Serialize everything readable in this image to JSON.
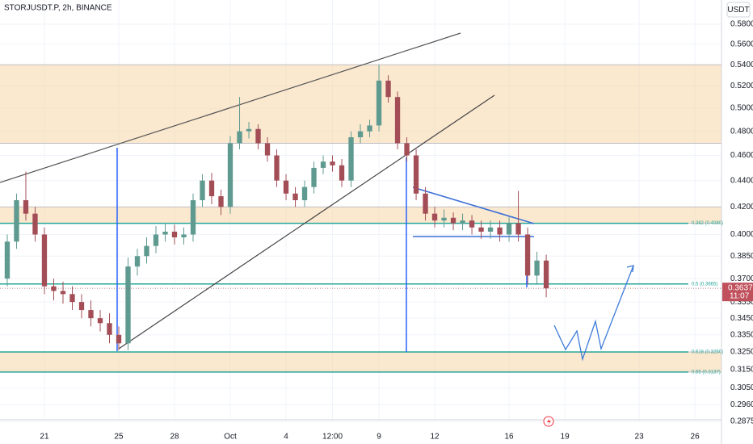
{
  "chart_data": {
    "type": "candlestick",
    "title": "STORJUSDT.P, 2h, BINANCE",
    "currency": "USDT",
    "log_scale": true,
    "grid": true,
    "up_color": "#5f9a90",
    "down_color": "#a34e57",
    "x": [
      19,
      19.5,
      20,
      20.5,
      21,
      21.5,
      22,
      22.5,
      23,
      23.5,
      24,
      24.5,
      25,
      25.5,
      26,
      26.5,
      27,
      27.5,
      28,
      28.5,
      29,
      29.5,
      30,
      30.5,
      31,
      31.5,
      32,
      32.5,
      33,
      33.5,
      34,
      34.5,
      35,
      35.5,
      36,
      36.5,
      37,
      37.5,
      38,
      38.5,
      39,
      39.5,
      40,
      40.5,
      41,
      41.5,
      42,
      42.5,
      43,
      43.5,
      44,
      44.5,
      45,
      45.5,
      46,
      46.5,
      47,
      47.5,
      48
    ],
    "open": [
      0.37,
      0.395,
      0.425,
      0.415,
      0.4,
      0.365,
      0.362,
      0.36,
      0.355,
      0.35,
      0.345,
      0.342,
      0.335,
      0.33,
      0.378,
      0.385,
      0.392,
      0.4,
      0.402,
      0.398,
      0.4,
      0.425,
      0.44,
      0.428,
      0.42,
      0.47,
      0.48,
      0.482,
      0.47,
      0.46,
      0.44,
      0.43,
      0.425,
      0.435,
      0.45,
      0.455,
      0.452,
      0.44,
      0.475,
      0.48,
      0.485,
      0.525,
      0.51,
      0.47,
      0.46,
      0.43,
      0.415,
      0.41,
      0.412,
      0.408,
      0.41,
      0.405,
      0.402,
      0.405,
      0.4,
      0.408,
      0.4,
      0.372,
      0.382
    ],
    "high": [
      0.4,
      0.43,
      0.447,
      0.42,
      0.405,
      0.37,
      0.368,
      0.365,
      0.36,
      0.356,
      0.35,
      0.348,
      0.34,
      0.384,
      0.39,
      0.398,
      0.406,
      0.408,
      0.407,
      0.405,
      0.43,
      0.445,
      0.446,
      0.433,
      0.476,
      0.51,
      0.488,
      0.486,
      0.475,
      0.465,
      0.445,
      0.435,
      0.44,
      0.455,
      0.46,
      0.46,
      0.457,
      0.48,
      0.486,
      0.49,
      0.54,
      0.53,
      0.515,
      0.475,
      0.465,
      0.435,
      0.42,
      0.418,
      0.416,
      0.415,
      0.414,
      0.41,
      0.41,
      0.41,
      0.413,
      0.432,
      0.405,
      0.388,
      0.386
    ],
    "low": [
      0.365,
      0.39,
      0.41,
      0.395,
      0.36,
      0.356,
      0.354,
      0.35,
      0.345,
      0.34,
      0.337,
      0.33,
      0.326,
      0.326,
      0.372,
      0.38,
      0.387,
      0.395,
      0.393,
      0.393,
      0.395,
      0.42,
      0.422,
      0.414,
      0.415,
      0.465,
      0.474,
      0.465,
      0.455,
      0.435,
      0.425,
      0.42,
      0.42,
      0.43,
      0.445,
      0.447,
      0.435,
      0.435,
      0.47,
      0.475,
      0.48,
      0.505,
      0.465,
      0.455,
      0.425,
      0.41,
      0.405,
      0.405,
      0.403,
      0.403,
      0.4,
      0.397,
      0.397,
      0.395,
      0.395,
      0.395,
      0.366,
      0.366,
      0.358
    ],
    "close": [
      0.395,
      0.425,
      0.415,
      0.4,
      0.365,
      0.362,
      0.36,
      0.355,
      0.35,
      0.345,
      0.342,
      0.335,
      0.33,
      0.378,
      0.385,
      0.392,
      0.4,
      0.402,
      0.398,
      0.4,
      0.425,
      0.44,
      0.428,
      0.42,
      0.47,
      0.48,
      0.482,
      0.47,
      0.46,
      0.44,
      0.43,
      0.425,
      0.435,
      0.45,
      0.455,
      0.452,
      0.44,
      0.475,
      0.48,
      0.485,
      0.525,
      0.51,
      0.47,
      0.46,
      0.43,
      0.415,
      0.41,
      0.412,
      0.408,
      0.41,
      0.405,
      0.402,
      0.405,
      0.4,
      0.408,
      0.4,
      0.372,
      0.382,
      0.3637
    ],
    "xlim": [
      18.61,
      57.43
    ],
    "xticks": [
      21,
      25,
      28,
      {
        "value": 31,
        "label": "Oct"
      },
      {
        "value": 34,
        "label": "4"
      },
      {
        "value": 36.5,
        "label": "12:00"
      },
      {
        "value": 39,
        "label": "9"
      },
      {
        "value": 42,
        "label": "12"
      },
      {
        "value": 46,
        "label": "16"
      },
      {
        "value": 49,
        "label": "19"
      },
      {
        "value": 53,
        "label": "23"
      },
      {
        "value": 56,
        "label": "26"
      }
    ],
    "ylim": [
      0.2883,
      0.6054
    ],
    "yticks": [
      {
        "value": 0.58,
        "label": "0.5800"
      },
      {
        "value": 0.56,
        "label": "0.5600"
      },
      {
        "value": 0.54,
        "label": "0.5400"
      },
      {
        "value": 0.52,
        "label": "0.5200"
      },
      {
        "value": 0.5,
        "label": "0.5000"
      },
      {
        "value": 0.48,
        "label": "0.4800"
      },
      {
        "value": 0.46,
        "label": "0.4600"
      },
      {
        "value": 0.44,
        "label": "0.4400"
      },
      {
        "value": 0.42,
        "label": "0.4200"
      },
      {
        "value": 0.4,
        "label": "0.4000"
      },
      {
        "value": 0.385,
        "label": "0.3850"
      },
      {
        "value": 0.37,
        "label": "0.3700"
      },
      {
        "value": 0.355,
        "label": "0.3550"
      },
      {
        "value": 0.345,
        "label": "0.3450"
      },
      {
        "value": 0.335,
        "label": "0.3350"
      },
      {
        "value": 0.325,
        "label": "0.3250"
      },
      {
        "value": 0.315,
        "label": "0.3150"
      },
      {
        "value": 0.305,
        "label": "0.3050"
      },
      {
        "value": 0.296,
        "label": "0.2960"
      },
      {
        "value": 0.2875,
        "label": "0.2875"
      }
    ],
    "zones": [
      [
        0.47,
        0.54
      ],
      [
        0.408,
        0.42
      ],
      [
        0.3137,
        0.325
      ]
    ],
    "fib_levels": [
      {
        "value": 0.408,
        "label": "0.382 (0.4080)"
      },
      {
        "value": 0.3665,
        "label": "0.5 (0.3665)"
      },
      {
        "value": 0.325,
        "label": "0.618 (0.3250)"
      },
      {
        "value": 0.3137,
        "label": "0.65 (0.3137)"
      }
    ],
    "last_price": {
      "value": 0.3637,
      "label": "0.3637"
    },
    "countdown": "11:07"
  }
}
